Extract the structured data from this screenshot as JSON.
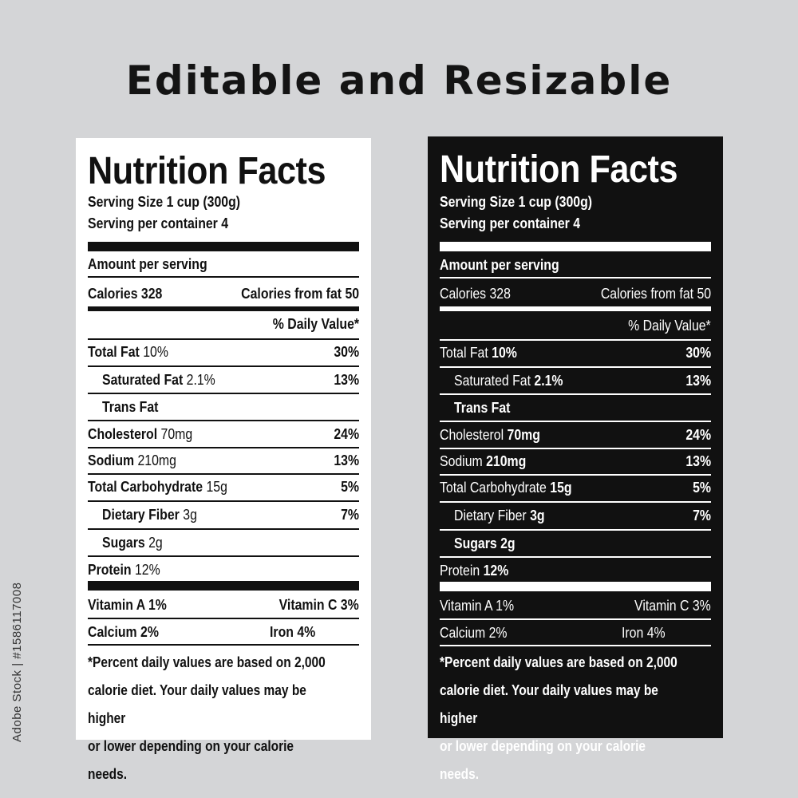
{
  "headline": "Editable and Resizable",
  "side_text": "Adobe Stock | #1586117008",
  "label": {
    "title": "Nutrition Facts",
    "serving_size": "Serving Size  1 cup (300g)",
    "serving_per_container": "Serving per container 4",
    "amount_per_serving": "Amount per serving",
    "calories": "Calories 328",
    "calories_from_fat": "Calories from fat 50",
    "daily_value_header": "% Daily Value*",
    "nutrients": [
      {
        "name": "Total Fat",
        "amount": "10%",
        "dv": "30%"
      },
      {
        "name": "Saturated Fat",
        "amount": "2.1%",
        "dv": "13%"
      },
      {
        "name": "Trans Fat",
        "amount": "",
        "dv": ""
      },
      {
        "name": "Cholesterol",
        "amount": "70mg",
        "dv": "24%"
      },
      {
        "name": "Sodium",
        "amount": "210mg",
        "dv": "13%"
      },
      {
        "name": "Total Carbohydrate",
        "amount": "15g",
        "dv": "5%"
      },
      {
        "name": "Dietary Fiber",
        "amount": "3g",
        "dv": "7%"
      },
      {
        "name": "Sugars",
        "amount": "2g",
        "dv": ""
      },
      {
        "name": "Protein",
        "amount": "12%",
        "dv": ""
      }
    ],
    "vitamin_a": "Vitamin A 1%",
    "vitamin_c": "Vitamin C 3%",
    "calcium": "Calcium 2%",
    "iron": "Iron 4%",
    "footnote_1": "*Percent daily values are based on 2,000",
    "footnote_2": "calorie diet. Your daily values may be higher",
    "footnote_3": "or lower depending on your calorie needs."
  },
  "colors": {
    "background": "#d4d5d7",
    "label_white": "#ffffff",
    "label_black": "#111111"
  }
}
